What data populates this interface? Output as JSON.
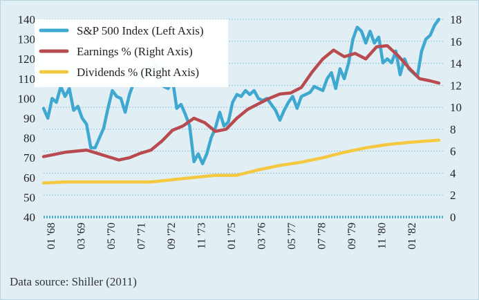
{
  "chart_data": {
    "type": "line",
    "title": "",
    "xlabel": "",
    "ylabel": "",
    "source_note": "Data source: Shiller (2011)",
    "x_tick_labels": [
      "01 '68",
      "03 '69",
      "05 '70",
      "07 '71",
      "09 '72",
      "11 '73",
      "01 '75",
      "03 '76",
      "05 '77",
      "07 '78",
      "09 '79",
      "11 '80",
      "01 '82"
    ],
    "y_left": {
      "ylim": [
        40,
        140
      ],
      "ticks": [
        40,
        50,
        60,
        70,
        80,
        90,
        100,
        110,
        120,
        130,
        140
      ]
    },
    "y_right": {
      "ylim": [
        0,
        18
      ],
      "ticks": [
        0,
        2,
        4,
        6,
        8,
        10,
        12,
        14,
        16,
        18
      ]
    },
    "legend": {
      "placement": "top-left",
      "entries": [
        {
          "name": "S&P 500 Index (Left Axis)",
          "color": "#3fa8d0"
        },
        {
          "name": "Earnings % (Right Axis)",
          "color": "#b84b50"
        },
        {
          "name": "Dividends % (Right Axis)",
          "color": "#f5c842"
        }
      ]
    },
    "x_range": [
      0,
      185
    ],
    "series": [
      {
        "name": "S&P 500 Index (Left Axis)",
        "axis": "left",
        "color": "#3fa8d0",
        "x": [
          0,
          2,
          4,
          6,
          8,
          10,
          12,
          14,
          16,
          18,
          20,
          22,
          24,
          26,
          28,
          30,
          32,
          34,
          36,
          38,
          40,
          42,
          44,
          46,
          48,
          50,
          52,
          54,
          56,
          58,
          60,
          62,
          64,
          66,
          68,
          70,
          72,
          74,
          76,
          78,
          80,
          82,
          84,
          86,
          88,
          90,
          92,
          94,
          96,
          98,
          100,
          102,
          104,
          106,
          108,
          110,
          112,
          114,
          116,
          118,
          120,
          122,
          124,
          126,
          128,
          130,
          132,
          134,
          136,
          138,
          140,
          142,
          144,
          146,
          148,
          150,
          152,
          154,
          156,
          158,
          160,
          162,
          164,
          166,
          168,
          170,
          172,
          174,
          176,
          178,
          180,
          182,
          184
        ],
        "y": [
          95,
          90,
          100,
          98,
          106,
          101,
          105,
          94,
          96,
          90,
          87,
          75,
          75,
          80,
          85,
          95,
          104,
          101,
          100,
          93,
          102,
          108,
          111,
          110,
          112,
          114,
          117,
          113,
          106,
          105,
          110,
          95,
          97,
          92,
          86,
          68,
          72,
          67,
          72,
          80,
          85,
          93,
          86,
          88,
          98,
          102,
          101,
          104,
          102,
          104,
          100,
          99,
          100,
          97,
          94,
          89,
          94,
          98,
          101,
          95,
          101,
          102,
          103,
          106,
          105,
          104,
          110,
          113,
          105,
          115,
          110,
          118,
          130,
          136,
          134,
          128,
          134,
          128,
          131,
          118,
          120,
          118,
          124,
          112,
          120,
          115,
          113,
          111,
          124,
          130,
          132,
          137,
          140
        ]
      },
      {
        "name": "Earnings % (Right Axis)",
        "axis": "right",
        "color": "#b84b50",
        "x": [
          0,
          10,
          20,
          25,
          30,
          35,
          40,
          45,
          50,
          55,
          60,
          65,
          70,
          75,
          80,
          85,
          90,
          95,
          100,
          105,
          110,
          115,
          120,
          125,
          130,
          135,
          140,
          145,
          150,
          155,
          160,
          165,
          170,
          175,
          180,
          184
        ],
        "y": [
          5.5,
          5.9,
          6.1,
          5.8,
          5.5,
          5.2,
          5.4,
          5.8,
          6.1,
          6.9,
          7.9,
          8.3,
          9.0,
          8.6,
          7.8,
          8.0,
          9.0,
          9.8,
          10.3,
          10.8,
          11.2,
          11.3,
          11.8,
          13.2,
          14.4,
          15.2,
          14.6,
          14.9,
          14.4,
          15.5,
          15.6,
          14.7,
          13.6,
          12.6,
          12.4,
          12.2
        ]
      },
      {
        "name": "Dividends % (Right Axis)",
        "axis": "right",
        "color": "#f5c842",
        "x": [
          0,
          10,
          20,
          30,
          40,
          50,
          60,
          70,
          80,
          90,
          100,
          110,
          120,
          130,
          140,
          150,
          160,
          170,
          184
        ],
        "y": [
          3.1,
          3.2,
          3.2,
          3.2,
          3.2,
          3.2,
          3.4,
          3.6,
          3.8,
          3.8,
          4.3,
          4.7,
          5.0,
          5.4,
          5.9,
          6.3,
          6.6,
          6.8,
          7.0
        ]
      }
    ]
  }
}
